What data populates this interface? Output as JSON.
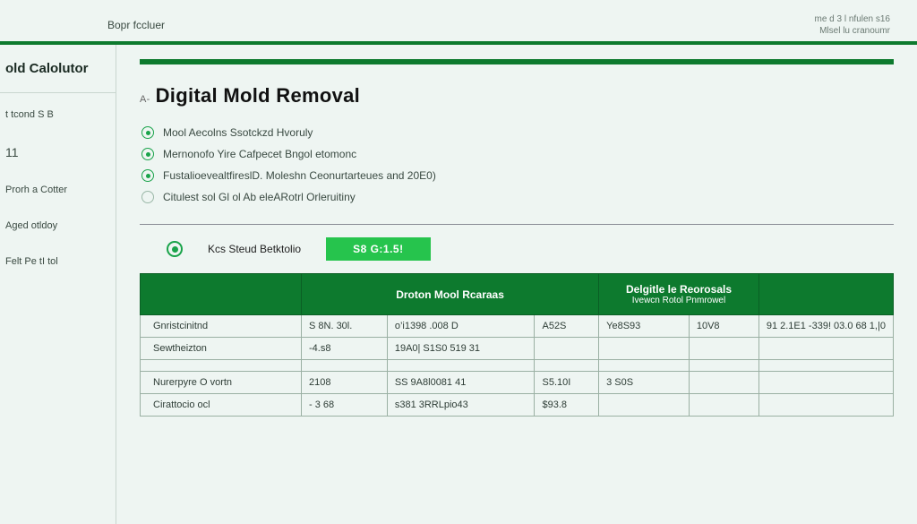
{
  "colors": {
    "brand_green": "#0d7a2e",
    "bright_green": "#26c44d",
    "bg": "#eef5f2",
    "border": "#9ab0a3"
  },
  "header": {
    "left_label": "Bopr fccluer",
    "right_line1": "me d 3 l nfulen s16",
    "right_line2": "Mlsel lu cranoumr"
  },
  "sidebar": {
    "title": "old Calolutor",
    "items": [
      "t tcond S B",
      "11",
      "Prorh a Cotter",
      "Aged otldoy",
      "Felt Pe tI tol"
    ]
  },
  "page": {
    "title_prefix": "A⁠-",
    "title": "Digital Mold Removal",
    "bullets": [
      "Mool Aecolns Ssotckzd Hvoruly",
      "Mernonofo Yire Cafpecet Bngol etomonc",
      "FustalioevealtfireslD. Moleshn Ceonurtarteues and 20E0)",
      "Citulest sol Gl ol Ab eleARotrl Orleruitiny"
    ],
    "cta_label": "Kcs Steud Betktolio",
    "cta_button": "S8 G:1.5!"
  },
  "table": {
    "columns": [
      "Droton Mool Rcaraas",
      "Delgitle le Reorosals\nIvewcn Rotol Pnmrowel",
      ""
    ],
    "rows": [
      {
        "label": "Gnristcinitnd",
        "a1": "S 8N. 30l.",
        "a2": "o’i1398  .008 D",
        "a3": "A52S",
        "b1": "Ye8S93",
        "b2": "10V8",
        "c": "91 2.1E1  -339! 03.0 68 1,|0"
      },
      {
        "label": "Sewtheizton",
        "a1": "-4.s8",
        "a2": "19A0| S1S0 519 31",
        "a3": "",
        "b1": "",
        "b2": "",
        "c": ""
      },
      {
        "label": "Nurerpyre O vortn",
        "a1": "2108",
        "a2": "SS 9A8l0081 41",
        "a3": "S5.10I",
        "b1": "3 S0S",
        "b2": "",
        "c": ""
      },
      {
        "label": "Cirattocio ocl",
        "a1": "- 3 68",
        "a2": "s381 3RRLpio43",
        "a3": "$93.8",
        "b1": "",
        "b2": "",
        "c": ""
      }
    ]
  }
}
